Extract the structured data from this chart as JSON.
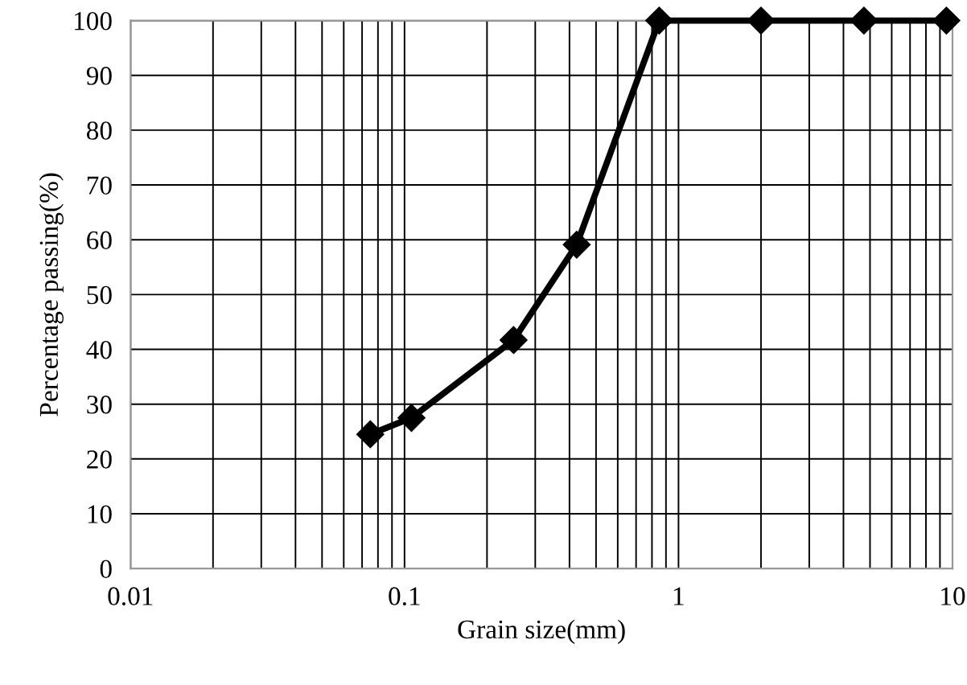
{
  "chart_data": {
    "type": "line",
    "xlabel": "Grain size(mm)",
    "ylabel": "Percentage passing(%)",
    "log": "x",
    "x": [
      0.075,
      0.106,
      0.25,
      0.425,
      0.85,
      2,
      4.75,
      9.5
    ],
    "series": [
      {
        "color": "#000000",
        "values": [
          24.5,
          27.5,
          41.7,
          59.1,
          100,
          100,
          100,
          100
        ]
      }
    ],
    "xlim": [
      0.01,
      10
    ],
    "xticks": [
      0.01,
      0.1,
      1,
      10
    ],
    "ylim": [
      0,
      100
    ],
    "yticks": [
      0,
      10,
      20,
      30,
      40,
      50,
      60,
      70,
      80,
      90,
      100
    ],
    "grid": true,
    "marker": "diamond",
    "line_style": "solid",
    "legend": false
  }
}
